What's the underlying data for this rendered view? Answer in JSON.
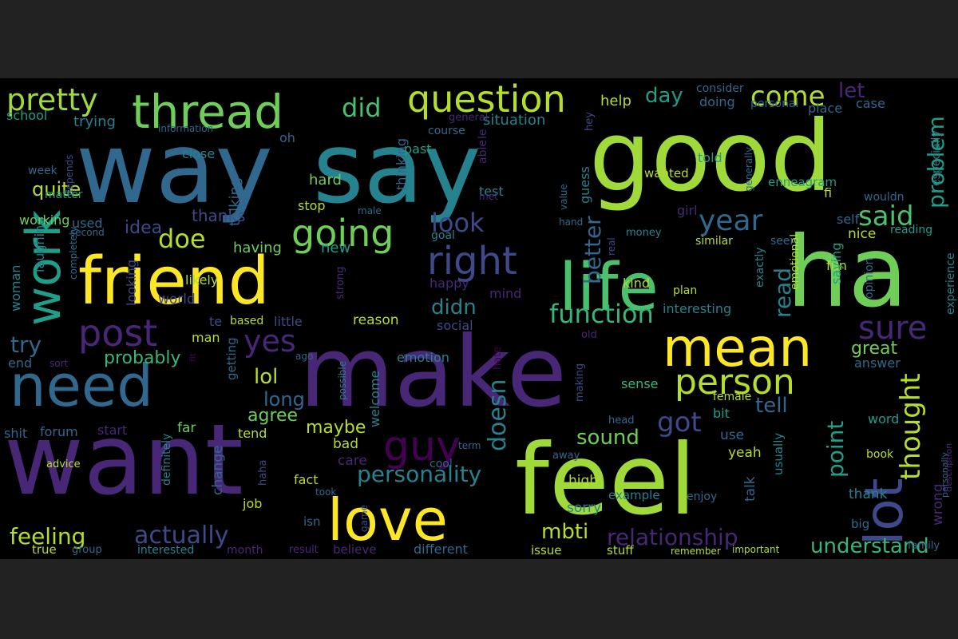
{
  "image": {
    "background": "#222222",
    "panel_background": "#000000",
    "palette": [
      "#440154",
      "#482777",
      "#3e4989",
      "#31688e",
      "#26828e",
      "#1f9e89",
      "#35b779",
      "#6ece58",
      "#b5de2b",
      "#fde725"
    ]
  },
  "word_cloud": {
    "words": [
      {
        "text": "way",
        "color": "#31688e"
      },
      {
        "text": "say",
        "color": "#26828e"
      },
      {
        "text": "good",
        "color": "#9fda3a"
      },
      {
        "text": "ha",
        "color": "#6ece58"
      },
      {
        "text": "make",
        "color": "#482777"
      },
      {
        "text": "want",
        "color": "#482777"
      },
      {
        "text": "feel",
        "color": "#9fda3a"
      },
      {
        "text": "friend",
        "color": "#fde725"
      },
      {
        "text": "life",
        "color": "#4ac16d"
      },
      {
        "text": "need",
        "color": "#31688e"
      },
      {
        "text": "love",
        "color": "#fde725"
      },
      {
        "text": "work",
        "color": "#1f9e89"
      },
      {
        "text": "thread",
        "color": "#6ece58"
      },
      {
        "text": "lot",
        "color": "#3e4989"
      },
      {
        "text": "mean",
        "color": "#fde725"
      },
      {
        "text": "question",
        "color": "#b5de2b"
      },
      {
        "text": "pretty",
        "color": "#9fda3a"
      },
      {
        "text": "right",
        "color": "#3e4989"
      },
      {
        "text": "going",
        "color": "#6ece58"
      },
      {
        "text": "post",
        "color": "#482777"
      },
      {
        "text": "person",
        "color": "#b5de2b"
      },
      {
        "text": "guy",
        "color": "#440154"
      },
      {
        "text": "did",
        "color": "#4ac16d"
      },
      {
        "text": "come",
        "color": "#b5de2b"
      },
      {
        "text": "year",
        "color": "#31688e"
      },
      {
        "text": "said",
        "color": "#4ac16d"
      },
      {
        "text": "sure",
        "color": "#482777"
      },
      {
        "text": "thought",
        "color": "#b5de2b"
      },
      {
        "text": "function",
        "color": "#35b779"
      },
      {
        "text": "yes",
        "color": "#482777"
      },
      {
        "text": "doe",
        "color": "#b5de2b"
      },
      {
        "text": "look",
        "color": "#3e4989"
      },
      {
        "text": "actually",
        "color": "#3e4989"
      },
      {
        "text": "feeling",
        "color": "#b5de2b"
      },
      {
        "text": "personality",
        "color": "#26828e"
      },
      {
        "text": "relationship",
        "color": "#482777"
      },
      {
        "text": "understand",
        "color": "#35b779"
      },
      {
        "text": "got",
        "color": "#3e4989"
      },
      {
        "text": "doesn",
        "color": "#26828e"
      },
      {
        "text": "sound",
        "color": "#6ece58"
      },
      {
        "text": "point",
        "color": "#1f9e89"
      },
      {
        "text": "problem",
        "color": "#1f9e89"
      },
      {
        "text": "read",
        "color": "#26828e"
      },
      {
        "text": "tell",
        "color": "#31688e"
      },
      {
        "text": "didn",
        "color": "#26828e"
      },
      {
        "text": "lol",
        "color": "#b5de2b"
      },
      {
        "text": "try",
        "color": "#31688e"
      },
      {
        "text": "probably",
        "color": "#35b779"
      },
      {
        "text": "better",
        "color": "#31688e"
      },
      {
        "text": "mbti",
        "color": "#b5de2b"
      },
      {
        "text": "day",
        "color": "#1f9e89"
      },
      {
        "text": "let",
        "color": "#482777"
      },
      {
        "text": "long",
        "color": "#31688e"
      },
      {
        "text": "quite",
        "color": "#b5de2b"
      },
      {
        "text": "agree",
        "color": "#6ece58"
      },
      {
        "text": "maybe",
        "color": "#b5de2b"
      },
      {
        "text": "idea",
        "color": "#3e4989"
      },
      {
        "text": "great",
        "color": "#6ece58"
      },
      {
        "text": "thanks",
        "color": "#3e4989"
      },
      {
        "text": "talking",
        "color": "#31688e"
      },
      {
        "text": "trying",
        "color": "#26828e"
      },
      {
        "text": "school",
        "color": "#1f9e89"
      },
      {
        "text": "help",
        "color": "#b5de2b"
      },
      {
        "text": "situation",
        "color": "#26828e"
      },
      {
        "text": "doing",
        "color": "#31688e"
      },
      {
        "text": "place",
        "color": "#31688e"
      },
      {
        "text": "case",
        "color": "#31688e"
      },
      {
        "text": "consider",
        "color": "#31688e"
      },
      {
        "text": "personal",
        "color": "#31688e"
      },
      {
        "text": "information",
        "color": "#31688e"
      },
      {
        "text": "oh",
        "color": "#31688e"
      },
      {
        "text": "general",
        "color": "#482777"
      },
      {
        "text": "able",
        "color": "#482777"
      },
      {
        "text": "le",
        "color": "#482777"
      },
      {
        "text": "hey",
        "color": "#3e4989"
      },
      {
        "text": "close",
        "color": "#26828e"
      },
      {
        "text": "past",
        "color": "#1f9e89"
      },
      {
        "text": "course",
        "color": "#31688e"
      },
      {
        "text": "told",
        "color": "#1f9e89"
      },
      {
        "text": "enneagram",
        "color": "#1f9e89"
      },
      {
        "text": "especially",
        "color": "#26828e"
      },
      {
        "text": "thinking",
        "color": "#31688e"
      },
      {
        "text": "guess",
        "color": "#26828e"
      },
      {
        "text": "test",
        "color": "#26828e"
      },
      {
        "text": "hard",
        "color": "#6ece58"
      },
      {
        "text": "week",
        "color": "#31688e"
      },
      {
        "text": "depends",
        "color": "#3e4989"
      },
      {
        "text": "matter",
        "color": "#1f9e89"
      },
      {
        "text": "laughing",
        "color": "#26828e"
      },
      {
        "text": "woman",
        "color": "#26828e"
      },
      {
        "text": "working",
        "color": "#6ece58"
      },
      {
        "text": "used",
        "color": "#31688e"
      },
      {
        "text": "second",
        "color": "#31688e"
      },
      {
        "text": "stop",
        "color": "#b5de2b"
      },
      {
        "text": "male",
        "color": "#31688e"
      },
      {
        "text": "met",
        "color": "#482777"
      },
      {
        "text": "value",
        "color": "#31688e"
      },
      {
        "text": "generally",
        "color": "#31688e"
      },
      {
        "text": "wanted",
        "color": "#b5de2b"
      },
      {
        "text": "fi",
        "color": "#b5de2b"
      },
      {
        "text": "wouldn",
        "color": "#31688e"
      },
      {
        "text": "girl",
        "color": "#482777"
      },
      {
        "text": "self",
        "color": "#31688e"
      },
      {
        "text": "nice",
        "color": "#b5de2b"
      },
      {
        "text": "reading",
        "color": "#1f9e89"
      },
      {
        "text": "money",
        "color": "#26828e"
      },
      {
        "text": "hand",
        "color": "#31688e"
      },
      {
        "text": "goal",
        "color": "#26828e"
      },
      {
        "text": "similar",
        "color": "#b5de2b"
      },
      {
        "text": "real",
        "color": "#3e4989"
      },
      {
        "text": "seen",
        "color": "#31688e"
      },
      {
        "text": "having",
        "color": "#6ece58"
      },
      {
        "text": "new",
        "color": "#1f9e89"
      },
      {
        "text": "completely",
        "color": "#31688e"
      },
      {
        "text": "looking",
        "color": "#3e4989"
      },
      {
        "text": "likely",
        "color": "#b5de2b"
      },
      {
        "text": "happy",
        "color": "#482777"
      },
      {
        "text": "mind",
        "color": "#482777"
      },
      {
        "text": "kind",
        "color": "#b5de2b"
      },
      {
        "text": "plan",
        "color": "#b5de2b"
      },
      {
        "text": "fun",
        "color": "#b5de2b"
      },
      {
        "text": "opinion",
        "color": "#31688e"
      },
      {
        "text": "experience",
        "color": "#26828e"
      },
      {
        "text": "saying",
        "color": "#1f9e89"
      },
      {
        "text": "emotional",
        "color": "#b5de2b"
      },
      {
        "text": "exactly",
        "color": "#26828e"
      },
      {
        "text": "strong",
        "color": "#482777"
      },
      {
        "text": "world",
        "color": "#3e4989"
      },
      {
        "text": "interesting",
        "color": "#26828e"
      },
      {
        "text": "te",
        "color": "#3e4989"
      },
      {
        "text": "based",
        "color": "#b5de2b"
      },
      {
        "text": "little",
        "color": "#3e4989"
      },
      {
        "text": "reason",
        "color": "#b5de2b"
      },
      {
        "text": "social",
        "color": "#3e4989"
      },
      {
        "text": "old",
        "color": "#482777"
      },
      {
        "text": "man",
        "color": "#b5de2b"
      },
      {
        "text": "getting",
        "color": "#31688e"
      },
      {
        "text": "fit",
        "color": "#440154"
      },
      {
        "text": "ago",
        "color": "#31688e"
      },
      {
        "text": "emotion",
        "color": "#26828e"
      },
      {
        "text": "hate",
        "color": "#440154"
      },
      {
        "text": "making",
        "color": "#3e4989"
      },
      {
        "text": "sense",
        "color": "#35b779"
      },
      {
        "text": "answer",
        "color": "#31688e"
      },
      {
        "text": "end",
        "color": "#31688e"
      },
      {
        "text": "sort",
        "color": "#482777"
      },
      {
        "text": "possible",
        "color": "#26828e"
      },
      {
        "text": "welcome",
        "color": "#26828e"
      },
      {
        "text": "female",
        "color": "#b5de2b"
      },
      {
        "text": "bit",
        "color": "#1f9e89"
      },
      {
        "text": "word",
        "color": "#1f9e89"
      },
      {
        "text": "head",
        "color": "#31688e"
      },
      {
        "text": "shit",
        "color": "#31688e"
      },
      {
        "text": "forum",
        "color": "#31688e"
      },
      {
        "text": "start",
        "color": "#482777"
      },
      {
        "text": "far",
        "color": "#6ece58"
      },
      {
        "text": "tend",
        "color": "#b5de2b"
      },
      {
        "text": "bad",
        "color": "#b5de2b"
      },
      {
        "text": "care",
        "color": "#482777"
      },
      {
        "text": "use",
        "color": "#31688e"
      },
      {
        "text": "yeah",
        "color": "#b5de2b"
      },
      {
        "text": "usually",
        "color": "#26828e"
      },
      {
        "text": "definitely",
        "color": "#26828e"
      },
      {
        "text": "advice",
        "color": "#b5de2b"
      },
      {
        "text": "change",
        "color": "#31688e"
      },
      {
        "text": "haha",
        "color": "#3e4989"
      },
      {
        "text": "term",
        "color": "#31688e"
      },
      {
        "text": "cool",
        "color": "#31688e"
      },
      {
        "text": "away",
        "color": "#31688e"
      },
      {
        "text": "personally",
        "color": "#31688e"
      },
      {
        "text": "description",
        "color": "#482777"
      },
      {
        "text": "book",
        "color": "#b5de2b"
      },
      {
        "text": "fact",
        "color": "#b5de2b"
      },
      {
        "text": "took",
        "color": "#31688e"
      },
      {
        "text": "high",
        "color": "#b5de2b"
      },
      {
        "text": "example",
        "color": "#26828e"
      },
      {
        "text": "enjoy",
        "color": "#31688e"
      },
      {
        "text": "talk",
        "color": "#31688e"
      },
      {
        "text": "thank",
        "color": "#26828e"
      },
      {
        "text": "wrong",
        "color": "#482777"
      },
      {
        "text": "job",
        "color": "#b5de2b"
      },
      {
        "text": "sorry",
        "color": "#26828e"
      },
      {
        "text": "isn",
        "color": "#31688e"
      },
      {
        "text": "game",
        "color": "#3e4989"
      },
      {
        "text": "big",
        "color": "#31688e"
      },
      {
        "text": "family",
        "color": "#31688e"
      },
      {
        "text": "true",
        "color": "#b5de2b"
      },
      {
        "text": "group",
        "color": "#31688e"
      },
      {
        "text": "interested",
        "color": "#26828e"
      },
      {
        "text": "month",
        "color": "#482777"
      },
      {
        "text": "result",
        "color": "#482777"
      },
      {
        "text": "believe",
        "color": "#482777"
      },
      {
        "text": "different",
        "color": "#31688e"
      },
      {
        "text": "issue",
        "color": "#b5de2b"
      },
      {
        "text": "stuff",
        "color": "#b5de2b"
      },
      {
        "text": "remember",
        "color": "#b5de2b"
      },
      {
        "text": "important",
        "color": "#b5de2b"
      }
    ]
  }
}
